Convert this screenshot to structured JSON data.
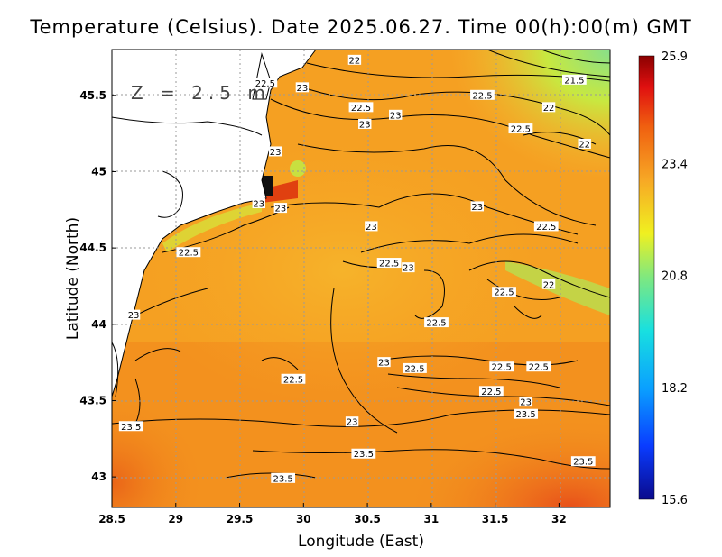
{
  "title": "Temperature (Celsius). Date 2025.06.27. Time 00(h):00(m) GMT",
  "depth_label": "Z = 2.5 m",
  "xlabel": "Longitude (East)",
  "ylabel": "Latitude (North)",
  "chart_data": {
    "type": "heatmap",
    "x_ticks": [
      "28.5",
      "29",
      "29.5",
      "30",
      "30.5",
      "31",
      "31.5",
      "32"
    ],
    "y_ticks": [
      "45.5",
      "45",
      "44.5",
      "44",
      "43.5",
      "43"
    ],
    "xlim": [
      28.5,
      32.4
    ],
    "ylim": [
      42.8,
      45.8
    ],
    "colorbar": {
      "min": 15.6,
      "max": 25.9,
      "ticks": [
        "25.9",
        "23.4",
        "20.8",
        "18.2",
        "15.6"
      ]
    },
    "contour_labels": [
      {
        "text": "22",
        "lon": 30.4,
        "lat": 45.73
      },
      {
        "text": "22.5",
        "lon": 29.7,
        "lat": 45.58
      },
      {
        "text": "23",
        "lon": 29.99,
        "lat": 45.55
      },
      {
        "text": "22.5",
        "lon": 30.45,
        "lat": 45.42
      },
      {
        "text": "23",
        "lon": 30.72,
        "lat": 45.37
      },
      {
        "text": "23",
        "lon": 30.48,
        "lat": 45.31
      },
      {
        "text": "22.5",
        "lon": 31.4,
        "lat": 45.5
      },
      {
        "text": "21.5",
        "lon": 32.12,
        "lat": 45.6
      },
      {
        "text": "22",
        "lon": 31.92,
        "lat": 45.42
      },
      {
        "text": "22.5",
        "lon": 31.7,
        "lat": 45.28
      },
      {
        "text": "22",
        "lon": 32.2,
        "lat": 45.18
      },
      {
        "text": "23",
        "lon": 29.78,
        "lat": 45.13
      },
      {
        "text": "23",
        "lon": 29.65,
        "lat": 44.79
      },
      {
        "text": "23",
        "lon": 29.82,
        "lat": 44.76
      },
      {
        "text": "23",
        "lon": 30.53,
        "lat": 44.64
      },
      {
        "text": "23",
        "lon": 31.36,
        "lat": 44.77
      },
      {
        "text": "22.5",
        "lon": 31.9,
        "lat": 44.64
      },
      {
        "text": "22.5",
        "lon": 29.1,
        "lat": 44.47
      },
      {
        "text": "22.5",
        "lon": 30.67,
        "lat": 44.4
      },
      {
        "text": "23",
        "lon": 30.82,
        "lat": 44.37
      },
      {
        "text": "22",
        "lon": 31.92,
        "lat": 44.26
      },
      {
        "text": "22.5",
        "lon": 31.57,
        "lat": 44.21
      },
      {
        "text": "23",
        "lon": 28.67,
        "lat": 44.06
      },
      {
        "text": "22.5",
        "lon": 31.04,
        "lat": 44.01
      },
      {
        "text": "23",
        "lon": 30.63,
        "lat": 43.75
      },
      {
        "text": "22.5",
        "lon": 30.87,
        "lat": 43.71
      },
      {
        "text": "22.5",
        "lon": 31.55,
        "lat": 43.72
      },
      {
        "text": "22.5",
        "lon": 31.84,
        "lat": 43.72
      },
      {
        "text": "22.5",
        "lon": 29.92,
        "lat": 43.64
      },
      {
        "text": "22.5",
        "lon": 31.47,
        "lat": 43.56
      },
      {
        "text": "23",
        "lon": 31.74,
        "lat": 43.49
      },
      {
        "text": "23.5",
        "lon": 31.74,
        "lat": 43.41
      },
      {
        "text": "23",
        "lon": 30.38,
        "lat": 43.36
      },
      {
        "text": "23.5",
        "lon": 28.65,
        "lat": 43.33
      },
      {
        "text": "23.5",
        "lon": 30.47,
        "lat": 43.15
      },
      {
        "text": "23.5",
        "lon": 32.19,
        "lat": 43.1
      },
      {
        "text": "23.5",
        "lon": 29.84,
        "lat": 42.99
      }
    ]
  },
  "colors": {
    "land": "#ffffff",
    "sea_warm": "#f28a1c",
    "sea_mid": "#f7a825",
    "sea_cool": "#9ad64a"
  }
}
